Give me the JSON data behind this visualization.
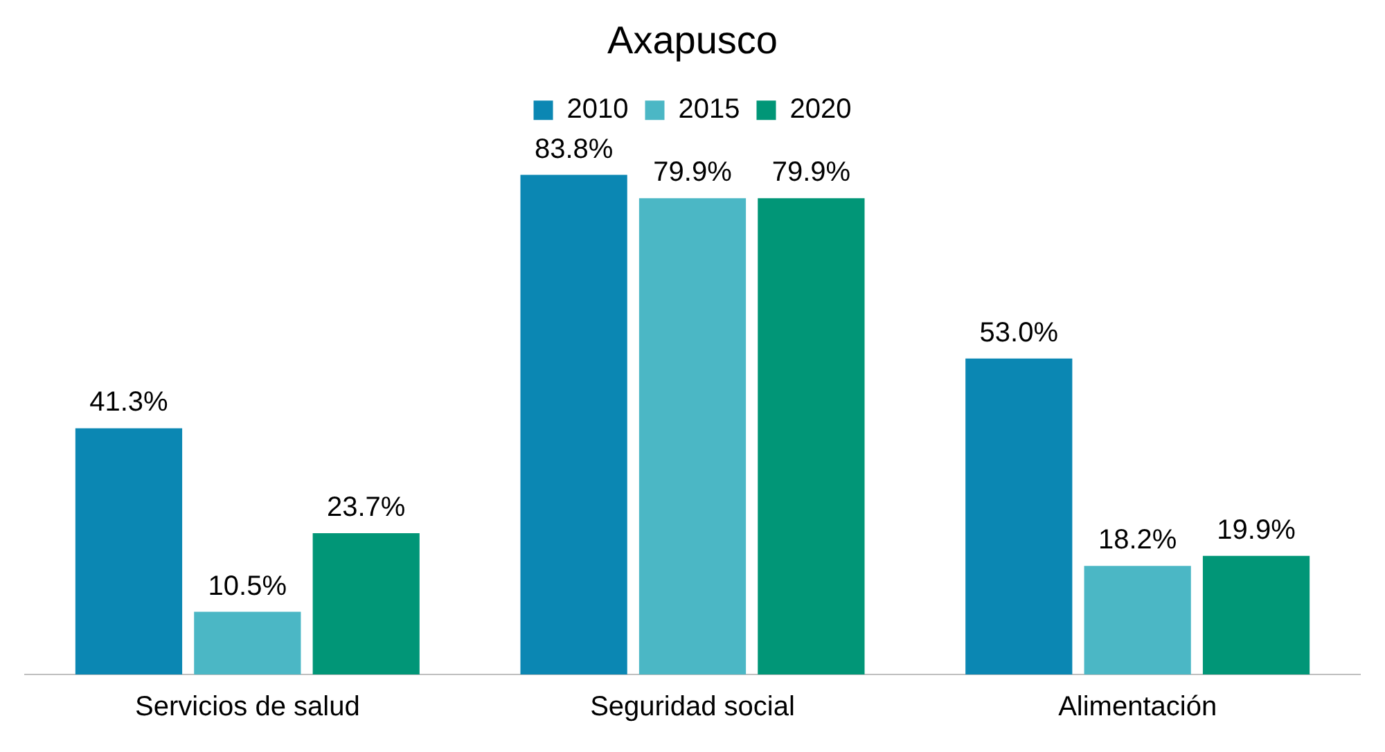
{
  "chart_data": {
    "type": "bar",
    "title": "Axapusco",
    "categories": [
      "Servicios de salud",
      "Seguridad social",
      "Alimentación"
    ],
    "series": [
      {
        "name": "2010",
        "color": "#0b87b3",
        "values": [
          41.3,
          83.8,
          53.0
        ],
        "value_labels": [
          "41.3%",
          "83.8%",
          "53.0%"
        ]
      },
      {
        "name": "2015",
        "color": "#4bb7c5",
        "values": [
          10.5,
          79.9,
          18.2
        ],
        "value_labels": [
          "10.5%",
          "79.9%",
          "18.2%"
        ]
      },
      {
        "name": "2020",
        "color": "#019677",
        "values": [
          23.7,
          79.9,
          19.9
        ],
        "value_labels": [
          "23.7%",
          "79.9%",
          "19.9%"
        ]
      }
    ],
    "legend": "top",
    "grid": false,
    "tick_labels": "x"
  }
}
